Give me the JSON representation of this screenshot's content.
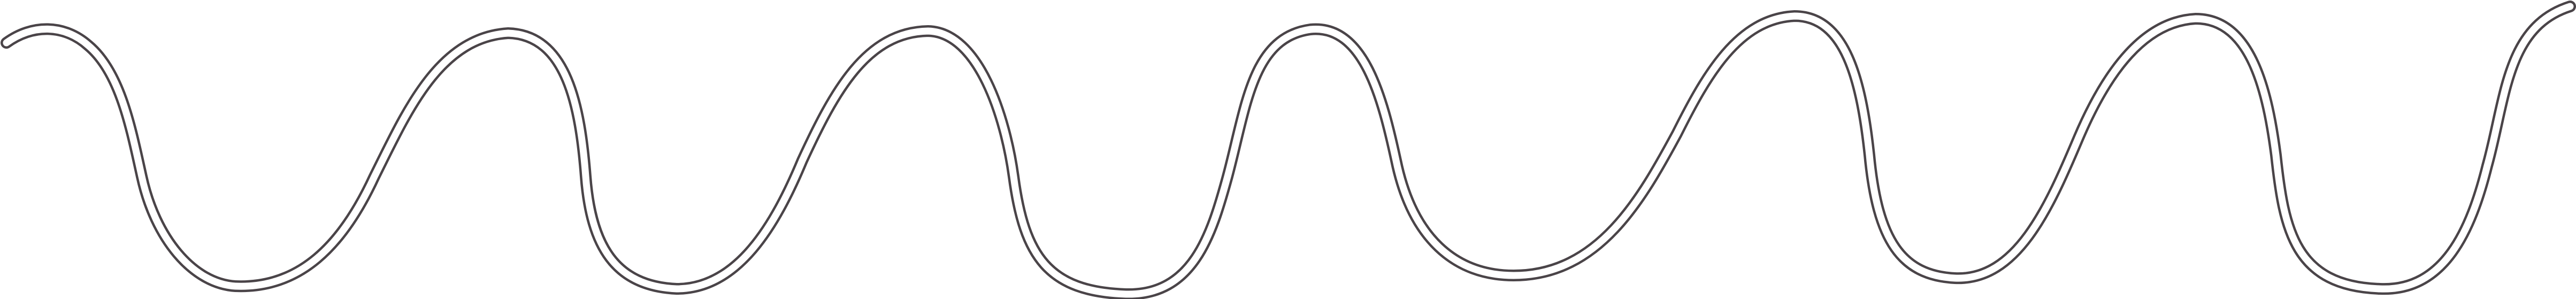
{
  "figure": {
    "description_visible_text": "",
    "colors": {
      "background": "#ffffff",
      "line": "#4a4448",
      "line_inner": "#ffffff"
    },
    "icon": "wavy-line-icon"
  }
}
